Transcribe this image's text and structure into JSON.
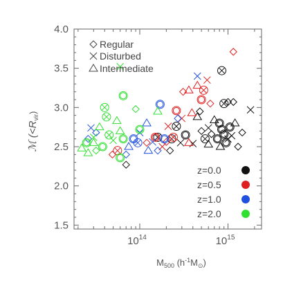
{
  "chart_data": {
    "type": "scatter",
    "title": "",
    "xlabel": {
      "main": "M",
      "sub": "500",
      "rest": " (h",
      "sup": "-1",
      "after": "M",
      "sun_sub": "⊙",
      "close": ")"
    },
    "ylabel": {
      "main": "ℳ (<R",
      "sub": "vir",
      "close": ")"
    },
    "xscale": "log",
    "xlim": [
      18000000000000.0,
      2400000000000000.0
    ],
    "ylim": [
      1.45,
      4.0
    ],
    "xticks": [
      {
        "value": 100000000000000.0,
        "base": "10",
        "exp": "14"
      },
      {
        "value": 1000000000000000.0,
        "base": "10",
        "exp": "15"
      }
    ],
    "yticks": [
      {
        "value": 1.5,
        "label": "1.5"
      },
      {
        "value": 2.0,
        "label": "2.0"
      },
      {
        "value": 2.5,
        "label": "2.5"
      },
      {
        "value": 3.0,
        "label": "3.0"
      },
      {
        "value": 3.5,
        "label": "3.5"
      },
      {
        "value": 4.0,
        "label": "4.0"
      }
    ],
    "grid": false,
    "shape_legend": [
      {
        "marker": "diamond",
        "label": "Regular"
      },
      {
        "marker": "cross",
        "label": "Disturbed"
      },
      {
        "marker": "triangle",
        "label": "Intermediate"
      }
    ],
    "color_legend": [
      {
        "label": "z=0.0",
        "color": "#111111"
      },
      {
        "label": "z=0.5",
        "color": "#e02020"
      },
      {
        "label": "z=1.0",
        "color": "#2050e0"
      },
      {
        "label": "z=2.0",
        "color": "#30e030"
      }
    ],
    "legend_position": "top-left (shapes), bottom-right (redshift colors)",
    "series": [
      {
        "color": "#111111",
        "points": [
          {
            "x": 850000000000000.0,
            "y": 3.47,
            "m": "circlecross"
          },
          {
            "x": 900000000000000.0,
            "y": 3.05,
            "m": "circlecross"
          },
          {
            "x": 1000000000000000.0,
            "y": 3.07,
            "m": "diamond"
          },
          {
            "x": 1150000000000000.0,
            "y": 3.07,
            "m": "diamond"
          },
          {
            "x": 1800000000000000.0,
            "y": 2.97,
            "m": "cross"
          },
          {
            "x": 800000000000000.0,
            "y": 2.8,
            "m": "circle"
          },
          {
            "x": 850000000000000.0,
            "y": 2.72,
            "m": "circle"
          },
          {
            "x": 900000000000000.0,
            "y": 2.66,
            "m": "circle"
          },
          {
            "x": 760000000000000.0,
            "y": 2.6,
            "m": "circle"
          },
          {
            "x": 950000000000000.0,
            "y": 2.55,
            "m": "circle"
          },
          {
            "x": 1050000000000000.0,
            "y": 2.75,
            "m": "circle"
          },
          {
            "x": 1000000000000000.0,
            "y": 2.6,
            "m": "cross"
          },
          {
            "x": 820000000000000.0,
            "y": 2.5,
            "m": "triangle"
          },
          {
            "x": 1100000000000000.0,
            "y": 2.64,
            "m": "cross"
          },
          {
            "x": 1200000000000000.0,
            "y": 2.8,
            "m": "triangle"
          },
          {
            "x": 1300000000000000.0,
            "y": 2.5,
            "m": "diamond"
          },
          {
            "x": 1450000000000000.0,
            "y": 2.68,
            "m": "diamond"
          },
          {
            "x": 700000000000000.0,
            "y": 2.84,
            "m": "triangle"
          },
          {
            "x": 600000000000000.0,
            "y": 2.74,
            "m": "cross"
          },
          {
            "x": 650000000000000.0,
            "y": 2.66,
            "m": "diamond"
          },
          {
            "x": 550000000000000.0,
            "y": 2.6,
            "m": "circlecross"
          },
          {
            "x": 600000000000000.0,
            "y": 2.53,
            "m": "triangle"
          },
          {
            "x": 500000000000000.0,
            "y": 2.7,
            "m": "diamond"
          },
          {
            "x": 450000000000000.0,
            "y": 2.88,
            "m": "triangle"
          },
          {
            "x": 400000000000000.0,
            "y": 2.54,
            "m": "cross"
          },
          {
            "x": 330000000000000.0,
            "y": 2.65,
            "m": "circle"
          },
          {
            "x": 290000000000000.0,
            "y": 2.55,
            "m": "cross"
          },
          {
            "x": 260000000000000.0,
            "y": 2.76,
            "m": "circlecross"
          },
          {
            "x": 230000000000000.0,
            "y": 2.6,
            "m": "circlecross"
          },
          {
            "x": 220000000000000.0,
            "y": 2.45,
            "m": "diamond"
          },
          {
            "x": 160000000000000.0,
            "y": 2.62,
            "m": "circlecross"
          },
          {
            "x": 70000000000000.0,
            "y": 2.27,
            "m": "diamond"
          },
          {
            "x": 480000000000000.0,
            "y": 2.95,
            "m": "diamond"
          }
        ]
      },
      {
        "color": "#e02020",
        "points": [
          {
            "x": 1150000000000000.0,
            "y": 3.71,
            "m": "diamond"
          },
          {
            "x": 360000000000000.0,
            "y": 3.22,
            "m": "triangle"
          },
          {
            "x": 450000000000000.0,
            "y": 3.28,
            "m": "triangle"
          },
          {
            "x": 530000000000000.0,
            "y": 3.22,
            "m": "circlecross"
          },
          {
            "x": 580000000000000.0,
            "y": 3.35,
            "m": "cross"
          },
          {
            "x": 310000000000000.0,
            "y": 3.2,
            "m": "diamond"
          },
          {
            "x": 630000000000000.0,
            "y": 3.05,
            "m": "diamond"
          },
          {
            "x": 500000000000000.0,
            "y": 3.1,
            "m": "circle"
          },
          {
            "x": 260000000000000.0,
            "y": 2.96,
            "m": "circle"
          },
          {
            "x": 390000000000000.0,
            "y": 2.93,
            "m": "triangle"
          },
          {
            "x": 300000000000000.0,
            "y": 2.86,
            "m": "cross"
          },
          {
            "x": 210000000000000.0,
            "y": 2.76,
            "m": "cross"
          },
          {
            "x": 240000000000000.0,
            "y": 2.62,
            "m": "circlecross"
          },
          {
            "x": 200000000000000.0,
            "y": 2.56,
            "m": "diamond"
          },
          {
            "x": 180000000000000.0,
            "y": 2.5,
            "m": "cross"
          },
          {
            "x": 150000000000000.0,
            "y": 2.62,
            "m": "circle"
          },
          {
            "x": 120000000000000.0,
            "y": 2.55,
            "m": "diamond"
          },
          {
            "x": 56000000000000.0,
            "y": 2.45,
            "m": "circlecross"
          },
          {
            "x": 49000000000000.0,
            "y": 2.4,
            "m": "diamond"
          },
          {
            "x": 360000000000000.0,
            "y": 2.55,
            "m": "triangle"
          }
        ]
      },
      {
        "color": "#2050e0",
        "points": [
          {
            "x": 450000000000000.0,
            "y": 3.4,
            "m": "cross"
          },
          {
            "x": 170000000000000.0,
            "y": 3.04,
            "m": "circle"
          },
          {
            "x": 270000000000000.0,
            "y": 2.86,
            "m": "diamond"
          },
          {
            "x": 120000000000000.0,
            "y": 2.8,
            "m": "triangle"
          },
          {
            "x": 100000000000000.0,
            "y": 2.68,
            "m": "cross"
          },
          {
            "x": 85000000000000.0,
            "y": 2.6,
            "m": "circle"
          },
          {
            "x": 95000000000000.0,
            "y": 2.55,
            "m": "circlecross"
          },
          {
            "x": 140000000000000.0,
            "y": 2.56,
            "m": "cross"
          },
          {
            "x": 125000000000000.0,
            "y": 2.45,
            "m": "triangle"
          },
          {
            "x": 160000000000000.0,
            "y": 2.45,
            "m": "diamond"
          },
          {
            "x": 70000000000000.0,
            "y": 2.4,
            "m": "diamond"
          },
          {
            "x": 75000000000000.0,
            "y": 2.5,
            "m": "triangle"
          },
          {
            "x": 28000000000000.0,
            "y": 2.74,
            "m": "cross"
          },
          {
            "x": 26000000000000.0,
            "y": 2.6,
            "m": "diamond"
          },
          {
            "x": 32000000000000.0,
            "y": 2.68,
            "m": "diamond"
          },
          {
            "x": 190000000000000.0,
            "y": 2.6,
            "m": "circle"
          }
        ]
      },
      {
        "color": "#30e030",
        "points": [
          {
            "x": 60000000000000.0,
            "y": 3.52,
            "m": "cross"
          },
          {
            "x": 65000000000000.0,
            "y": 3.15,
            "m": "circle"
          },
          {
            "x": 40000000000000.0,
            "y": 3.0,
            "m": "circlecross"
          },
          {
            "x": 42000000000000.0,
            "y": 2.88,
            "m": "circlecross"
          },
          {
            "x": 90000000000000.0,
            "y": 2.98,
            "m": "diamond"
          },
          {
            "x": 55000000000000.0,
            "y": 2.83,
            "m": "triangle"
          },
          {
            "x": 35000000000000.0,
            "y": 2.75,
            "m": "triangle"
          },
          {
            "x": 60000000000000.0,
            "y": 2.7,
            "m": "triangle"
          },
          {
            "x": 100000000000000.0,
            "y": 2.72,
            "m": "circle"
          },
          {
            "x": 45000000000000.0,
            "y": 2.65,
            "m": "circlecross"
          },
          {
            "x": 65000000000000.0,
            "y": 2.6,
            "m": "circle"
          },
          {
            "x": 50000000000000.0,
            "y": 2.58,
            "m": "cross"
          },
          {
            "x": 60000000000000.0,
            "y": 2.36,
            "m": "circle"
          },
          {
            "x": 30000000000000.0,
            "y": 2.55,
            "m": "triangle"
          },
          {
            "x": 25000000000000.0,
            "y": 2.55,
            "m": "circle"
          },
          {
            "x": 22000000000000.0,
            "y": 2.48,
            "m": "triangle"
          },
          {
            "x": 26000000000000.0,
            "y": 2.42,
            "m": "triangle"
          },
          {
            "x": 32000000000000.0,
            "y": 2.45,
            "m": "diamond"
          },
          {
            "x": 38000000000000.0,
            "y": 2.5,
            "m": "circle"
          },
          {
            "x": 30000000000000.0,
            "y": 2.62,
            "m": "cross"
          },
          {
            "x": 160000000000000.0,
            "y": 2.95,
            "m": "triangle"
          }
        ]
      }
    ]
  }
}
